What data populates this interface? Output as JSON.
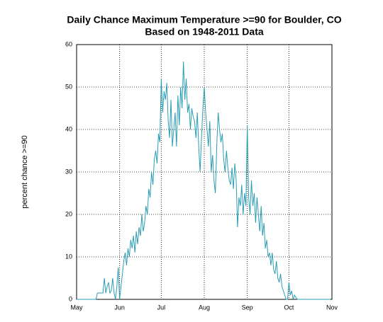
{
  "chart_data": {
    "type": "line",
    "title": "Daily Chance Maximum Temperature >=90 for Boulder, CO",
    "subtitle": "Based on 1948-2011 Data",
    "y_label": "percent chance >=90",
    "xlim": [
      0,
      184
    ],
    "xticks": [
      {
        "value": 0,
        "label": "May"
      },
      {
        "value": 31,
        "label": "Jun"
      },
      {
        "value": 61,
        "label": "Jul"
      },
      {
        "value": 92,
        "label": "Aug"
      },
      {
        "value": 123,
        "label": "Sep"
      },
      {
        "value": 153,
        "label": "Oct"
      },
      {
        "value": 184,
        "label": "Nov"
      }
    ],
    "ylim": [
      0,
      60
    ],
    "yticks": [
      0,
      10,
      20,
      30,
      40,
      50,
      60
    ],
    "grid": true,
    "x": [
      0,
      1,
      2,
      3,
      4,
      5,
      6,
      7,
      8,
      9,
      10,
      11,
      12,
      13,
      14,
      15,
      16,
      17,
      18,
      19,
      20,
      21,
      22,
      23,
      24,
      25,
      26,
      27,
      28,
      29,
      30,
      31,
      32,
      33,
      34,
      35,
      36,
      37,
      38,
      39,
      40,
      41,
      42,
      43,
      44,
      45,
      46,
      47,
      48,
      49,
      50,
      51,
      52,
      53,
      54,
      55,
      56,
      57,
      58,
      59,
      60,
      61,
      62,
      63,
      64,
      65,
      66,
      67,
      68,
      69,
      70,
      71,
      72,
      73,
      74,
      75,
      76,
      77,
      78,
      79,
      80,
      81,
      82,
      83,
      84,
      85,
      86,
      87,
      88,
      89,
      90,
      91,
      92,
      93,
      94,
      95,
      96,
      97,
      98,
      99,
      100,
      101,
      102,
      103,
      104,
      105,
      106,
      107,
      108,
      109,
      110,
      111,
      112,
      113,
      114,
      115,
      116,
      117,
      118,
      119,
      120,
      121,
      122,
      123,
      124,
      125,
      126,
      127,
      128,
      129,
      130,
      131,
      132,
      133,
      134,
      135,
      136,
      137,
      138,
      139,
      140,
      141,
      142,
      143,
      144,
      145,
      146,
      147,
      148,
      149,
      150,
      151,
      152,
      153,
      154,
      155,
      156,
      157,
      158,
      159,
      160,
      161,
      162,
      163,
      164,
      165,
      166,
      167,
      168,
      169,
      170,
      171,
      172,
      173,
      174,
      175,
      176,
      177,
      178,
      179,
      180,
      181,
      182,
      183
    ],
    "series": [
      {
        "name": "percent chance >=90",
        "color": "#2a9db5",
        "values": [
          0,
          0,
          0,
          0,
          0,
          0,
          0,
          0,
          0,
          0,
          0,
          0,
          0,
          0,
          0,
          1.5,
          1.5,
          1.5,
          1.5,
          1.5,
          5,
          1.5,
          3,
          4,
          1.5,
          2,
          5,
          1.5,
          0,
          3,
          7.5,
          0,
          3,
          6,
          9,
          11,
          8,
          12,
          10,
          14,
          12,
          15,
          11,
          16,
          13,
          17,
          15,
          20,
          16,
          18,
          22,
          20,
          26,
          24,
          30,
          27,
          33,
          35,
          32,
          39,
          37,
          52,
          44,
          49,
          47,
          51,
          42,
          38,
          47,
          36,
          40,
          44,
          36,
          48,
          41,
          50,
          45,
          56,
          47,
          52,
          44,
          46,
          40,
          45,
          43,
          42,
          38,
          44,
          36,
          30,
          38,
          45,
          50,
          44,
          40,
          36,
          42,
          30,
          34,
          28,
          25,
          36,
          44,
          40,
          37,
          39,
          33,
          30,
          35,
          31,
          28,
          27,
          31,
          26,
          32,
          28,
          17,
          24,
          22,
          27,
          20,
          25,
          22,
          41,
          24,
          20,
          28,
          22,
          25,
          18,
          24,
          20,
          16,
          22,
          15,
          18,
          12,
          14,
          10,
          11,
          8,
          11,
          7,
          6,
          9,
          5,
          4,
          6,
          3,
          2,
          1,
          0,
          0,
          4,
          1,
          2,
          0,
          1,
          0.5,
          0,
          0,
          0,
          0,
          0,
          0,
          0,
          0,
          0,
          0,
          0,
          0,
          0,
          0,
          0,
          0,
          0,
          0,
          0,
          0,
          0,
          0,
          0,
          0,
          0
        ]
      }
    ]
  }
}
